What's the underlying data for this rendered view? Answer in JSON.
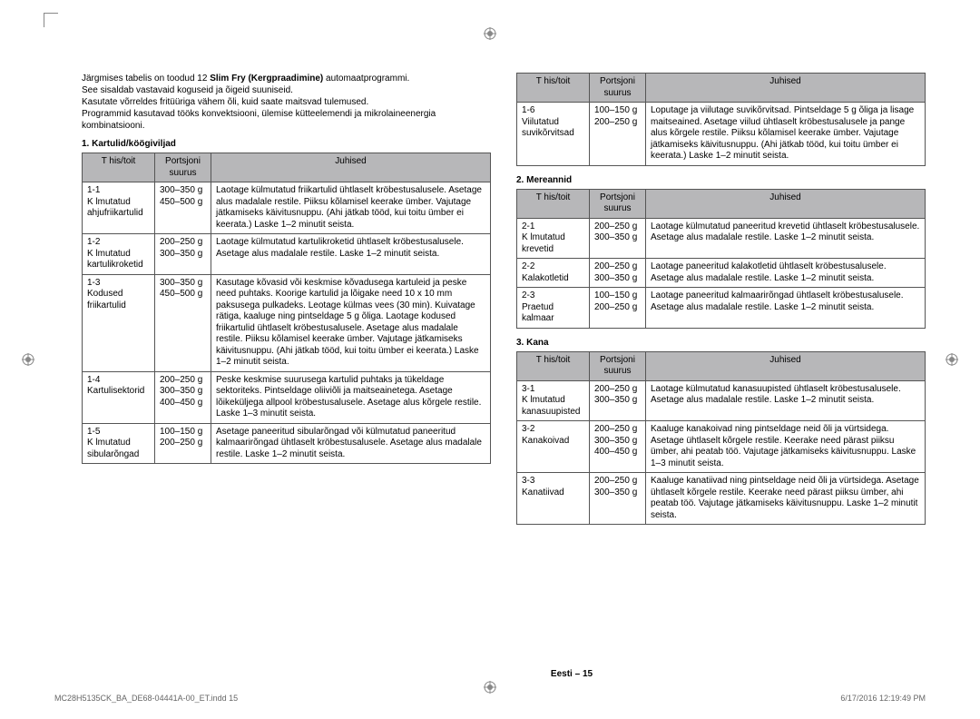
{
  "intro": {
    "line1a": "Järgmises tabelis on toodud 12 ",
    "line1b": "Slim Fry (Kergpraadimine)",
    "line1c": " automaatprogrammi.",
    "line2": "See sisaldab vastavaid koguseid ja õigeid suuniseid.",
    "line3": "Kasutate võrreldes fritüüriga vähem õli, kuid saate maitsvad tulemused.",
    "line4": "Programmid kasutavad tööks konvektsiooni, ülemise kütteelemendi ja mikrolaineenergia kombinatsiooni."
  },
  "headers": {
    "col1": "T his/toit",
    "col2a": "Portsjoni",
    "col2b": "suurus",
    "col3": "Juhised"
  },
  "sec1": {
    "title": "1. Kartulid/köögiviljad",
    "rows": [
      {
        "c1": "1-1\nK lmutatud\nahjufriikartulid",
        "c2": "300–350 g\n450–500 g",
        "c3": "Laotage külmutatud friikartulid ühtlaselt kröbestusalusele. Asetage alus madalale restile. Piiksu kõlamisel keerake ümber. Vajutage jätkamiseks käivitusnuppu. (Ahi jätkab tööd, kui toitu ümber ei keerata.) Laske 1–2 minutit seista."
      },
      {
        "c1": "1-2\nK lmutatud\nkartulikroketid",
        "c2": "200–250 g\n300–350 g",
        "c3": "Laotage külmutatud kartulikroketid ühtlaselt kröbestusalusele. Asetage alus madalale restile. Laske 1–2 minutit seista."
      },
      {
        "c1": "1-3\nKodused\nfriikartulid",
        "c2": "300–350 g\n450–500 g",
        "c3": "Kasutage kõvasid või keskmise kõvadusega kartuleid ja peske need puhtaks. Koorige kartulid ja lõigake need 10 x 10 mm paksusega pulkadeks. Leotage külmas vees (30 min). Kuivatage rätiga, kaaluge ning pintseldage 5 g õliga. Laotage kodused friikartulid ühtlaselt kröbestusalusele. Asetage alus madalale restile. Piiksu kõlamisel keerake ümber. Vajutage jätkamiseks käivitusnuppu. (Ahi jätkab tööd, kui toitu ümber ei keerata.) Laske 1–2 minutit seista."
      },
      {
        "c1": "1-4\nKartulisektorid",
        "c2": "200–250 g\n300–350 g\n400–450 g",
        "c3": "Peske keskmise suurusega kartulid puhtaks ja tükeldage sektoriteks. Pintseldage oliiviõli ja maitseainetega. Asetage lõikeküljega allpool kröbestusalusele. Asetage alus kõrgele restile. Laske 1–3 minutit seista."
      },
      {
        "c1": "1-5\nK lmutatud\nsibularõngad",
        "c2": "100–150 g\n200–250 g",
        "c3": "Asetage paneeritud sibularõngad või külmutatud paneeritud kalmaarirõngad ühtlaselt kröbestusalusele. Asetage alus madalale restile. Laske 1–2 minutit seista."
      }
    ]
  },
  "sec1r": {
    "rows": [
      {
        "c1": "1-6\nViilutatud\nsuvikõrvitsad",
        "c2": "100–150 g\n200–250 g",
        "c3": "Loputage ja viilutage suvikõrvitsad. Pintseldage 5 g õliga ja lisage maitseained. Asetage viilud ühtlaselt kröbestusalusele ja pange alus kõrgele restile. Piiksu kõlamisel keerake ümber. Vajutage jätkamiseks käivitusnuppu. (Ahi jätkab tööd, kui toitu ümber ei keerata.) Laske 1–2 minutit seista."
      }
    ]
  },
  "sec2": {
    "title": "2. Mereannid",
    "rows": [
      {
        "c1": "2-1\nK lmutatud\nkrevetid",
        "c2": "200–250 g\n300–350 g",
        "c3": "Laotage külmutatud paneeritud krevetid ühtlaselt kröbestusalusele. Asetage alus madalale restile. Laske 1–2 minutit seista."
      },
      {
        "c1": "2-2\nKalakotletid",
        "c2": "200–250 g\n300–350 g",
        "c3": "Laotage paneeritud kalakotletid ühtlaselt kröbestusalusele. Asetage alus madalale restile. Laske 1–2 minutit seista."
      },
      {
        "c1": "2-3\nPraetud\nkalmaar",
        "c2": "100–150 g\n200–250 g",
        "c3": "Laotage paneeritud kalmaarirõngad ühtlaselt kröbestusalusele. Asetage alus madalale restile. Laske 1–2 minutit seista."
      }
    ]
  },
  "sec3": {
    "title": "3. Kana",
    "rows": [
      {
        "c1": "3-1\nK lmutatud\nkanasuupisted",
        "c2": "200–250 g\n300–350 g",
        "c3": "Laotage külmutatud kanasuupisted ühtlaselt kröbestusalusele. Asetage alus madalale restile. Laske 1–2 minutit seista."
      },
      {
        "c1": "3-2\nKanakoivad",
        "c2": "200–250 g\n300–350 g\n400–450 g",
        "c3": "Kaaluge kanakoivad ning pintseldage neid õli ja vürtsidega. Asetage ühtlaselt kõrgele restile. Keerake need pärast piiksu ümber, ahi peatab töö. Vajutage jätkamiseks käivitusnuppu. Laske 1–3 minutit seista."
      },
      {
        "c1": "3-3\nKanatiivad",
        "c2": "200–250 g\n300–350 g",
        "c3": "Kaaluge kanatiivad ning pintseldage neid õli ja vürtsidega. Asetage ühtlaselt kõrgele restile. Keerake need pärast piiksu ümber, ahi peatab töö. Vajutage jätkamiseks käivitusnuppu. Laske 1–2 minutit seista."
      }
    ]
  },
  "footer": "Eesti – 15",
  "footnote": {
    "left": "MC28H5135CK_BA_DE68-04441A-00_ET.indd   15",
    "right": "6/17/2016   12:19:49 PM"
  }
}
